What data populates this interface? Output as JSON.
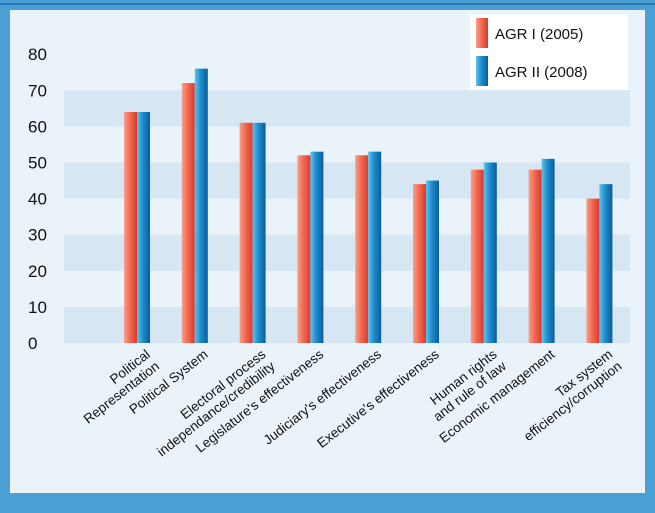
{
  "chart_data": {
    "type": "bar",
    "categories": [
      [
        "Political",
        "Representation"
      ],
      [
        "Political System"
      ],
      [
        "Electoral process",
        "independance/credibility"
      ],
      [
        "Legislature's effectiveness"
      ],
      [
        "Judiciary's effectiveness"
      ],
      [
        "Executive's effectiveness"
      ],
      [
        "Human rights",
        "and rule of law"
      ],
      [
        "Economic management"
      ],
      [
        "Tax system",
        "efficiency/corruption"
      ]
    ],
    "series": [
      {
        "name": "AGR I (2005)",
        "values": [
          64,
          72,
          61,
          52,
          52,
          44,
          48,
          48,
          40
        ],
        "color": "#f0534a"
      },
      {
        "name": "AGR II (2008)",
        "values": [
          64,
          76,
          61,
          53,
          53,
          45,
          50,
          51,
          44
        ],
        "color": "#1c7fc0"
      }
    ],
    "yticks": [
      "0",
      "10",
      "20",
      "30",
      "40",
      "50",
      "60",
      "70",
      "80"
    ],
    "ylim": [
      0,
      85
    ],
    "legend_position": "top-right",
    "grid": "alternating horizontal bands"
  }
}
